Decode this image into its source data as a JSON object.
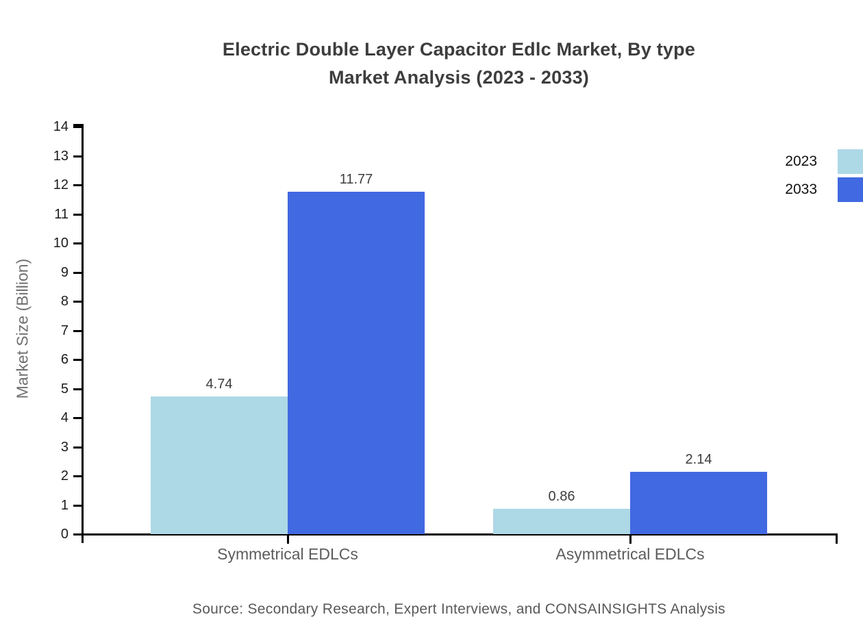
{
  "title": {
    "line1": "Electric Double Layer Capacitor Edlc Market, By type",
    "line2": "Market Analysis (2023 - 2033)"
  },
  "chart_data": {
    "type": "bar",
    "title": "Electric Double Layer Capacitor Edlc Market, By type Market Analysis (2023 - 2033)",
    "categories": [
      "Symmetrical EDLCs",
      "Asymmetrical EDLCs"
    ],
    "series": [
      {
        "name": "2023",
        "color": "#ADD8E6",
        "values": [
          4.74,
          0.86
        ]
      },
      {
        "name": "2033",
        "color": "#4169E1",
        "values": [
          11.77,
          2.14
        ]
      }
    ],
    "xlabel": "",
    "ylabel": "Market Size (Billion)",
    "ylim": [
      0,
      14
    ],
    "yticks": [
      0,
      1,
      2,
      3,
      4,
      5,
      6,
      7,
      8,
      9,
      10,
      11,
      12,
      13,
      14
    ],
    "grid": false,
    "legend_position": "upper-right",
    "value_labels": true
  },
  "source": "Source: Secondary Research, Expert Interviews, and CONSAINSIGHTS Analysis",
  "colors": {
    "series_2023": "#ADD8E6",
    "series_2033": "#4169E1",
    "axis": "#000000",
    "title_text": "#3d3d3d",
    "value_label_text": "#3d3d3d",
    "category_text": "#5c5c5c",
    "tick_text": "#1c1c1c",
    "muted_text": "#707070"
  }
}
